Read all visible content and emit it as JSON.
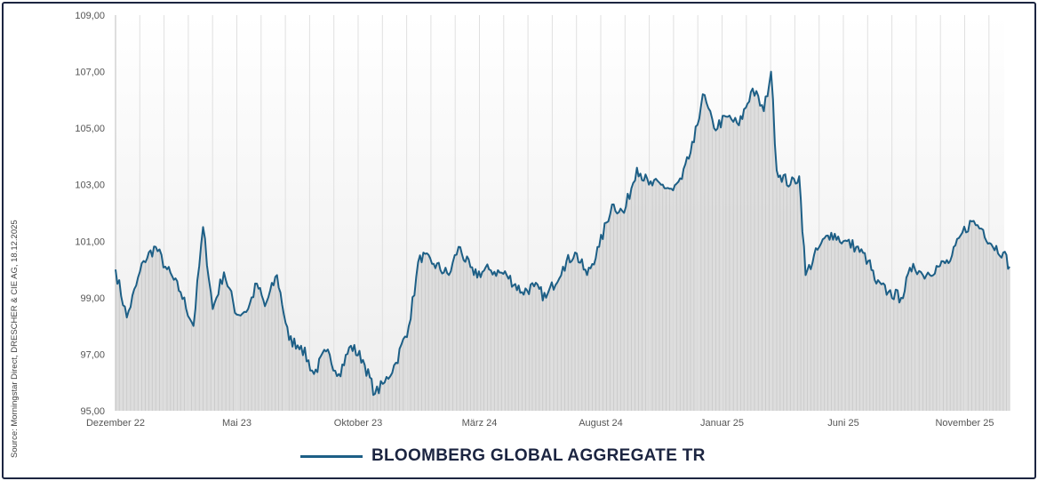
{
  "chart_data": {
    "type": "area",
    "title": "",
    "xlabel": "",
    "ylabel": "",
    "ylim": [
      95,
      109
    ],
    "y_ticks": [
      "95,00",
      "97,00",
      "99,00",
      "101,00",
      "103,00",
      "105,00",
      "107,00",
      "109,00"
    ],
    "x_tick_labels": [
      "Dezember 22",
      "Mai 23",
      "Oktober 23",
      "März 24",
      "August 24",
      "Januar 25",
      "Juni 25",
      "November 25"
    ],
    "grid": "vertical",
    "legend_position": "bottom",
    "source": "Source: Morningstar Direct, DRESCHER & CIE AG, 18.12.2025",
    "series": [
      {
        "name": "BLOOMBERG GLOBAL AGGREGATE TR",
        "color": "#1d5f86",
        "points": [
          [
            "2022-12-01",
            100.0
          ],
          [
            "2022-12-15",
            98.3
          ],
          [
            "2023-01-05",
            100.3
          ],
          [
            "2023-01-20",
            100.8
          ],
          [
            "2023-02-01",
            100.1
          ],
          [
            "2023-02-20",
            99.2
          ],
          [
            "2023-03-08",
            98.0
          ],
          [
            "2023-03-20",
            101.5
          ],
          [
            "2023-04-01",
            98.6
          ],
          [
            "2023-04-15",
            99.9
          ],
          [
            "2023-05-01",
            98.4
          ],
          [
            "2023-05-15",
            98.6
          ],
          [
            "2023-05-26",
            99.5
          ],
          [
            "2023-06-05",
            98.7
          ],
          [
            "2023-06-20",
            99.8
          ],
          [
            "2023-07-05",
            97.5
          ],
          [
            "2023-07-20",
            97.3
          ],
          [
            "2023-08-05",
            96.3
          ],
          [
            "2023-08-20",
            97.1
          ],
          [
            "2023-09-05",
            96.3
          ],
          [
            "2023-09-20",
            97.3
          ],
          [
            "2023-10-05",
            96.8
          ],
          [
            "2023-10-20",
            95.6
          ],
          [
            "2023-11-01",
            96.0
          ],
          [
            "2023-11-15",
            96.7
          ],
          [
            "2023-12-01",
            98.0
          ],
          [
            "2023-12-15",
            100.5
          ],
          [
            "2024-01-01",
            100.2
          ],
          [
            "2024-01-20",
            99.8
          ],
          [
            "2024-02-01",
            100.8
          ],
          [
            "2024-02-20",
            99.8
          ],
          [
            "2024-03-10",
            100.0
          ],
          [
            "2024-04-01",
            99.8
          ],
          [
            "2024-04-20",
            99.2
          ],
          [
            "2024-05-05",
            99.4
          ],
          [
            "2024-05-20",
            99.0
          ],
          [
            "2024-06-10",
            100.1
          ],
          [
            "2024-06-25",
            100.6
          ],
          [
            "2024-07-10",
            99.8
          ],
          [
            "2024-07-25",
            100.8
          ],
          [
            "2024-08-10",
            102.3
          ],
          [
            "2024-08-25",
            102.0
          ],
          [
            "2024-09-10",
            103.6
          ],
          [
            "2024-09-25",
            103.0
          ],
          [
            "2024-10-10",
            103.0
          ],
          [
            "2024-10-25",
            102.8
          ],
          [
            "2024-11-05",
            103.2
          ],
          [
            "2024-11-20",
            104.5
          ],
          [
            "2024-12-01",
            106.2
          ],
          [
            "2024-12-15",
            105.0
          ],
          [
            "2025-01-01",
            105.4
          ],
          [
            "2025-01-15",
            105.1
          ],
          [
            "2025-02-01",
            106.4
          ],
          [
            "2025-02-15",
            105.6
          ],
          [
            "2025-02-24",
            107.0
          ],
          [
            "2025-03-03",
            103.5
          ],
          [
            "2025-03-20",
            103.0
          ],
          [
            "2025-03-31",
            103.3
          ],
          [
            "2025-04-08",
            99.8
          ],
          [
            "2025-04-25",
            100.8
          ],
          [
            "2025-05-10",
            101.3
          ],
          [
            "2025-05-25",
            101.0
          ],
          [
            "2025-06-10",
            100.8
          ],
          [
            "2025-06-25",
            100.3
          ],
          [
            "2025-07-05",
            99.5
          ],
          [
            "2025-07-20",
            99.2
          ],
          [
            "2025-08-05",
            99.0
          ],
          [
            "2025-08-20",
            100.2
          ],
          [
            "2025-09-01",
            99.8
          ],
          [
            "2025-09-20",
            100.1
          ],
          [
            "2025-10-05",
            100.3
          ],
          [
            "2025-10-20",
            101.3
          ],
          [
            "2025-11-01",
            101.7
          ],
          [
            "2025-11-15",
            101.4
          ],
          [
            "2025-11-25",
            100.9
          ],
          [
            "2025-12-10",
            100.6
          ],
          [
            "2025-12-18",
            100.1
          ]
        ]
      }
    ]
  }
}
